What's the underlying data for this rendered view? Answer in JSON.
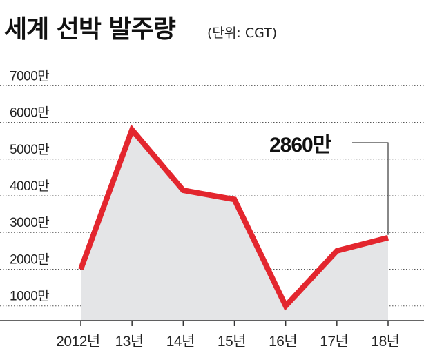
{
  "chart_data": {
    "type": "area",
    "title": "세계 선박 발주량",
    "subtitle": "(단위: CGT)",
    "categories": [
      "2012년",
      "13년",
      "14년",
      "15년",
      "16년",
      "17년",
      "18년"
    ],
    "series": [
      {
        "values": [
          20000000,
          58000000,
          41500000,
          39000000,
          10000000,
          25000000,
          28600000
        ]
      }
    ],
    "y_tick_labels": [
      "1000만",
      "2000만",
      "3000만",
      "4000만",
      "5000만",
      "6000만",
      "7000만"
    ],
    "ylim": [
      6000000,
      71000000
    ],
    "grid": "horizontal-dotted",
    "annotation": {
      "text": "2860만",
      "target_index": 6
    },
    "colors": {
      "line": "#e3262e",
      "area": "#e4e5e7",
      "grid": "#555555",
      "axis": "#333333"
    }
  }
}
